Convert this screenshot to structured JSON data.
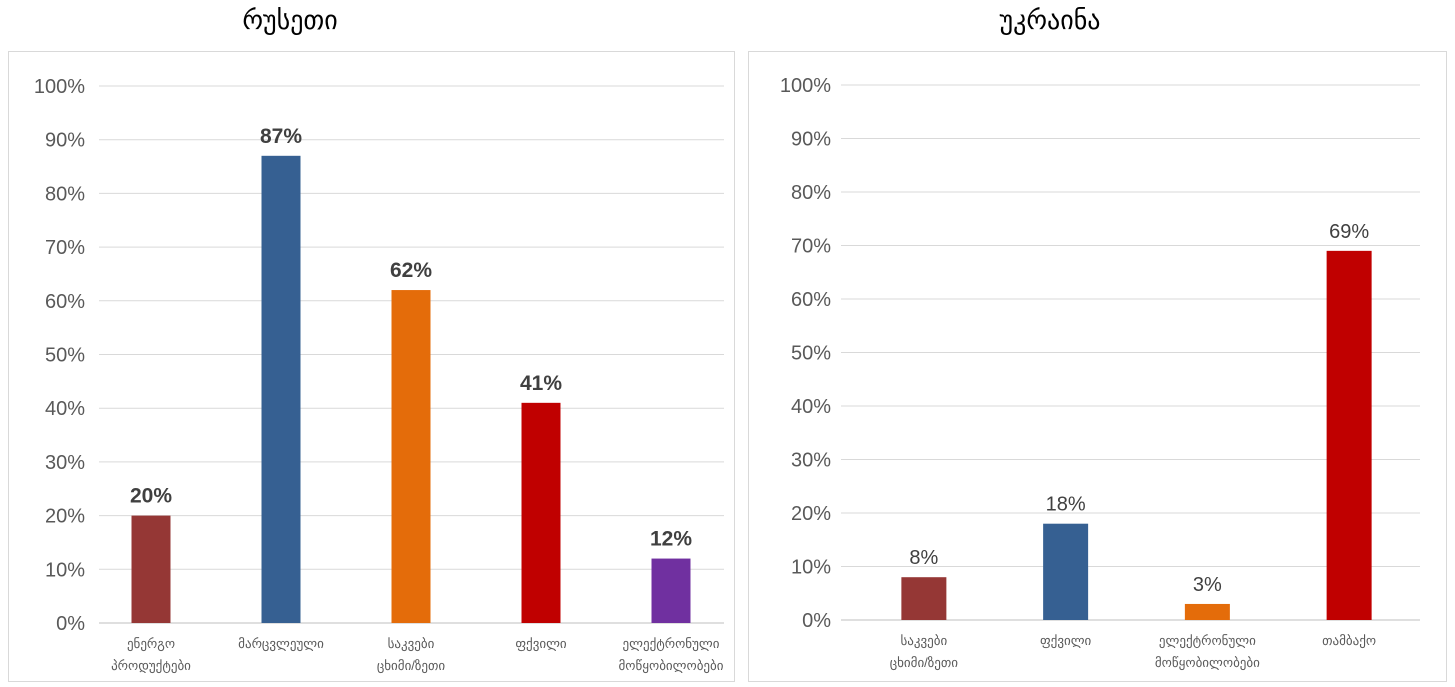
{
  "chart_data": [
    {
      "type": "bar",
      "title": "რუსეთი",
      "categories": [
        [
          "ენერგო",
          "პროდუქტები"
        ],
        [
          "მარცვლეული"
        ],
        [
          "საკვები",
          "ცხიმი/ზეთი"
        ],
        [
          "ფქვილი"
        ],
        [
          "ელექტრონული",
          "მოწყობილობები"
        ]
      ],
      "values": [
        20,
        87,
        62,
        41,
        12
      ],
      "value_labels": [
        "20%",
        "87%",
        "62%",
        "41%",
        "12%"
      ],
      "bar_colors": [
        "#953735",
        "#366092",
        "#e46c0a",
        "#c00000",
        "#7030a0"
      ],
      "y_ticks": [
        "0%",
        "10%",
        "20%",
        "30%",
        "40%",
        "50%",
        "60%",
        "70%",
        "80%",
        "90%",
        "100%"
      ],
      "ylim": [
        0,
        100
      ],
      "grid": true,
      "label_style": "bold"
    },
    {
      "type": "bar",
      "title": "უკრაინა",
      "categories": [
        [
          "საკვები",
          "ცხიმი/ზეთი"
        ],
        [
          "ფქვილი"
        ],
        [
          "ელექტრონული",
          "მოწყობილობები"
        ],
        [
          "თამბაქო"
        ]
      ],
      "values": [
        8,
        18,
        3,
        69
      ],
      "value_labels": [
        "8%",
        "18%",
        "3%",
        "69%"
      ],
      "bar_colors": [
        "#953735",
        "#366092",
        "#e46c0a",
        "#c00000"
      ],
      "y_ticks": [
        "0%",
        "10%",
        "20%",
        "30%",
        "40%",
        "50%",
        "60%",
        "70%",
        "80%",
        "90%",
        "100%"
      ],
      "ylim": [
        0,
        100
      ],
      "grid": true,
      "label_style": "regular"
    }
  ]
}
